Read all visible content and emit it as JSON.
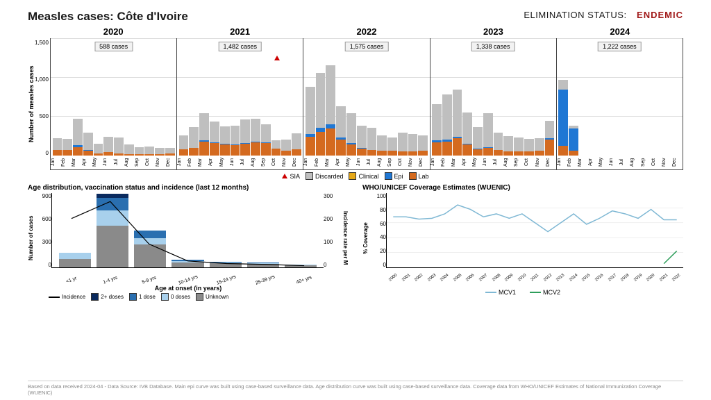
{
  "title": "Measles cases: Côte d'Ivoire",
  "status_label": "ELIMINATION STATUS:",
  "status_value": "ENDEMIC",
  "status_color": "#a01818",
  "colors": {
    "discarded": "#bfbfbf",
    "clinical": "#e6a817",
    "epi": "#1f77d4",
    "lab": "#d46a1f",
    "sia": "#cc0000",
    "dose2": "#0a2a5e",
    "dose1": "#2a6fb0",
    "dose0": "#a8d0ec",
    "unknown": "#8a8a8a",
    "mcv1": "#7fb8d4",
    "mcv2": "#2e9e5b"
  },
  "epi": {
    "ylabel": "Number of measles cases",
    "ymax": 1500,
    "yticks": [
      0,
      500,
      1000,
      1500
    ],
    "months": [
      "Jan",
      "Feb",
      "Mar",
      "Apr",
      "May",
      "Jun",
      "Jul",
      "Aug",
      "Sep",
      "Oct",
      "Nov",
      "Dec"
    ],
    "years": [
      {
        "year": "2020",
        "badge": "588 cases",
        "bars": [
          {
            "lab": 70,
            "epi": 0,
            "clinical": 0,
            "discarded": 150
          },
          {
            "lab": 70,
            "epi": 0,
            "clinical": 0,
            "discarded": 140
          },
          {
            "lab": 110,
            "epi": 20,
            "clinical": 0,
            "discarded": 340
          },
          {
            "lab": 60,
            "epi": 10,
            "clinical": 0,
            "discarded": 220
          },
          {
            "lab": 30,
            "epi": 0,
            "clinical": 0,
            "discarded": 120
          },
          {
            "lab": 40,
            "epi": 0,
            "clinical": 0,
            "discarded": 200
          },
          {
            "lab": 30,
            "epi": 0,
            "clinical": 0,
            "discarded": 200
          },
          {
            "lab": 20,
            "epi": 0,
            "clinical": 0,
            "discarded": 120
          },
          {
            "lab": 20,
            "epi": 0,
            "clinical": 0,
            "discarded": 90
          },
          {
            "lab": 15,
            "epi": 0,
            "clinical": 0,
            "discarded": 100
          },
          {
            "lab": 15,
            "epi": 0,
            "clinical": 0,
            "discarded": 80
          },
          {
            "lab": 30,
            "epi": 0,
            "clinical": 0,
            "discarded": 70
          }
        ]
      },
      {
        "year": "2021",
        "badge": "1,482 cases",
        "sia": {
          "month": 9,
          "y": 1220
        },
        "bars": [
          {
            "lab": 80,
            "epi": 0,
            "clinical": 0,
            "discarded": 180
          },
          {
            "lab": 100,
            "epi": 0,
            "clinical": 0,
            "discarded": 260
          },
          {
            "lab": 180,
            "epi": 10,
            "clinical": 0,
            "discarded": 350
          },
          {
            "lab": 160,
            "epi": 10,
            "clinical": 0,
            "discarded": 260
          },
          {
            "lab": 140,
            "epi": 10,
            "clinical": 0,
            "discarded": 220
          },
          {
            "lab": 130,
            "epi": 10,
            "clinical": 0,
            "discarded": 240
          },
          {
            "lab": 150,
            "epi": 10,
            "clinical": 0,
            "discarded": 300
          },
          {
            "lab": 170,
            "epi": 10,
            "clinical": 0,
            "discarded": 290
          },
          {
            "lab": 160,
            "epi": 10,
            "clinical": 0,
            "discarded": 230
          },
          {
            "lab": 90,
            "epi": 0,
            "clinical": 0,
            "discarded": 100
          },
          {
            "lab": 60,
            "epi": 0,
            "clinical": 0,
            "discarded": 140
          },
          {
            "lab": 80,
            "epi": 0,
            "clinical": 0,
            "discarded": 200
          }
        ]
      },
      {
        "year": "2022",
        "badge": "1,575 cases",
        "bars": [
          {
            "lab": 240,
            "epi": 30,
            "clinical": 0,
            "discarded": 600
          },
          {
            "lab": 300,
            "epi": 50,
            "clinical": 0,
            "discarded": 700
          },
          {
            "lab": 340,
            "epi": 60,
            "clinical": 0,
            "discarded": 750
          },
          {
            "lab": 200,
            "epi": 30,
            "clinical": 0,
            "discarded": 400
          },
          {
            "lab": 140,
            "epi": 20,
            "clinical": 0,
            "discarded": 380
          },
          {
            "lab": 90,
            "epi": 10,
            "clinical": 0,
            "discarded": 280
          },
          {
            "lab": 70,
            "epi": 0,
            "clinical": 0,
            "discarded": 280
          },
          {
            "lab": 60,
            "epi": 0,
            "clinical": 0,
            "discarded": 200
          },
          {
            "lab": 60,
            "epi": 0,
            "clinical": 0,
            "discarded": 170
          },
          {
            "lab": 50,
            "epi": 0,
            "clinical": 0,
            "discarded": 240
          },
          {
            "lab": 50,
            "epi": 0,
            "clinical": 0,
            "discarded": 220
          },
          {
            "lab": 60,
            "epi": 0,
            "clinical": 0,
            "discarded": 200
          }
        ]
      },
      {
        "year": "2023",
        "badge": "1,338 cases",
        "bars": [
          {
            "lab": 170,
            "epi": 20,
            "clinical": 0,
            "discarded": 460
          },
          {
            "lab": 180,
            "epi": 20,
            "clinical": 0,
            "discarded": 580
          },
          {
            "lab": 220,
            "epi": 20,
            "clinical": 0,
            "discarded": 600
          },
          {
            "lab": 140,
            "epi": 10,
            "clinical": 0,
            "discarded": 400
          },
          {
            "lab": 80,
            "epi": 10,
            "clinical": 0,
            "discarded": 270
          },
          {
            "lab": 100,
            "epi": 10,
            "clinical": 0,
            "discarded": 430
          },
          {
            "lab": 70,
            "epi": 0,
            "clinical": 0,
            "discarded": 220
          },
          {
            "lab": 50,
            "epi": 0,
            "clinical": 0,
            "discarded": 200
          },
          {
            "lab": 50,
            "epi": 0,
            "clinical": 0,
            "discarded": 180
          },
          {
            "lab": 50,
            "epi": 0,
            "clinical": 0,
            "discarded": 160
          },
          {
            "lab": 60,
            "epi": 0,
            "clinical": 0,
            "discarded": 160
          },
          {
            "lab": 200,
            "epi": 20,
            "clinical": 0,
            "discarded": 220
          }
        ]
      },
      {
        "year": "2024",
        "badge": "1,222 cases",
        "bars": [
          {
            "lab": 120,
            "epi": 720,
            "clinical": 0,
            "discarded": 120
          },
          {
            "lab": 60,
            "epi": 280,
            "clinical": 0,
            "discarded": 40
          },
          {
            "lab": 0,
            "epi": 0,
            "clinical": 0,
            "discarded": 0
          },
          {
            "lab": 0,
            "epi": 0,
            "clinical": 0,
            "discarded": 0
          },
          {
            "lab": 0,
            "epi": 0,
            "clinical": 0,
            "discarded": 0
          },
          {
            "lab": 0,
            "epi": 0,
            "clinical": 0,
            "discarded": 0
          },
          {
            "lab": 0,
            "epi": 0,
            "clinical": 0,
            "discarded": 0
          },
          {
            "lab": 0,
            "epi": 0,
            "clinical": 0,
            "discarded": 0
          },
          {
            "lab": 0,
            "epi": 0,
            "clinical": 0,
            "discarded": 0
          },
          {
            "lab": 0,
            "epi": 0,
            "clinical": 0,
            "discarded": 0
          },
          {
            "lab": 0,
            "epi": 0,
            "clinical": 0,
            "discarded": 0
          },
          {
            "lab": 0,
            "epi": 0,
            "clinical": 0,
            "discarded": 0
          }
        ]
      }
    ],
    "legend": [
      {
        "type": "tri",
        "label": "SIA"
      },
      {
        "type": "sw",
        "color": "#bfbfbf",
        "label": "Discarded"
      },
      {
        "type": "sw",
        "color": "#e6a817",
        "label": "Clinical"
      },
      {
        "type": "sw",
        "color": "#1f77d4",
        "label": "Epi"
      },
      {
        "type": "sw",
        "color": "#d46a1f",
        "label": "Lab"
      }
    ]
  },
  "age": {
    "title": "Age distribution, vaccination status and incidence (last 12 months)",
    "ylabel_l": "Number of cases",
    "ylabel_r": "Incidence rate per M",
    "xlabel": "Age at onset (in years)",
    "ymax": 1050,
    "yticks_l": [
      0,
      300,
      600,
      900
    ],
    "ymax_r": 350,
    "yticks_r": [
      0,
      100,
      200,
      300
    ],
    "cats": [
      "<1 yr",
      "1-4 yrs",
      "5-9 yrs",
      "10-14 yrs",
      "15-24 yrs",
      "25-39 yrs",
      "40+ yrs"
    ],
    "bars": [
      {
        "unknown": 120,
        "dose0": 80,
        "dose1": 0,
        "dose2": 0
      },
      {
        "unknown": 580,
        "dose0": 220,
        "dose1": 170,
        "dose2": 60
      },
      {
        "unknown": 320,
        "dose0": 90,
        "dose1": 110,
        "dose2": 0
      },
      {
        "unknown": 70,
        "dose0": 20,
        "dose1": 20,
        "dose2": 0
      },
      {
        "unknown": 60,
        "dose0": 10,
        "dose1": 10,
        "dose2": 0
      },
      {
        "unknown": 50,
        "dose0": 10,
        "dose1": 10,
        "dose2": 0
      },
      {
        "unknown": 30,
        "dose0": 5,
        "dose1": 5,
        "dose2": 0
      }
    ],
    "incidence": [
      230,
      310,
      110,
      30,
      18,
      14,
      8
    ],
    "legend": [
      {
        "type": "line",
        "label": "Incidence"
      },
      {
        "type": "sw",
        "color": "#0a2a5e",
        "label": "2+ doses"
      },
      {
        "type": "sw",
        "color": "#2a6fb0",
        "label": "1 dose"
      },
      {
        "type": "sw",
        "color": "#a8d0ec",
        "label": "0 doses"
      },
      {
        "type": "sw",
        "color": "#8a8a8a",
        "label": "Unknown"
      }
    ]
  },
  "coverage": {
    "title": "WHO/UNICEF Coverage Estimates (WUENIC)",
    "ylabel": "% Coverage",
    "ymax": 100,
    "yticks": [
      0,
      20,
      40,
      60,
      80,
      100
    ],
    "years": [
      "2000",
      "2001",
      "2002",
      "2003",
      "2004",
      "2005",
      "2006",
      "2007",
      "2008",
      "2009",
      "2010",
      "2011",
      "2012",
      "2013",
      "2014",
      "2015",
      "2016",
      "2017",
      "2018",
      "2019",
      "2020",
      "2021",
      "2022"
    ],
    "mcv1": [
      68,
      68,
      65,
      66,
      72,
      84,
      78,
      68,
      72,
      66,
      72,
      60,
      48,
      60,
      72,
      58,
      66,
      76,
      72,
      66,
      78,
      64,
      64
    ],
    "mcv2": [
      null,
      null,
      null,
      null,
      null,
      null,
      null,
      null,
      null,
      null,
      null,
      null,
      null,
      null,
      null,
      null,
      null,
      null,
      null,
      null,
      null,
      5,
      22
    ],
    "legend": [
      {
        "color": "#7fb8d4",
        "label": "MCV1"
      },
      {
        "color": "#2e9e5b",
        "label": "MCV2"
      }
    ]
  },
  "footer": "Based on data received 2024-04 - Data Source: IVB Database. Main epi curve was built using case-based surveillance data.  Age distribution curve was built using case-based surveillance data. Coverage data from WHO/UNICEF Estimates of National Immunization Coverage (WUENIC)"
}
